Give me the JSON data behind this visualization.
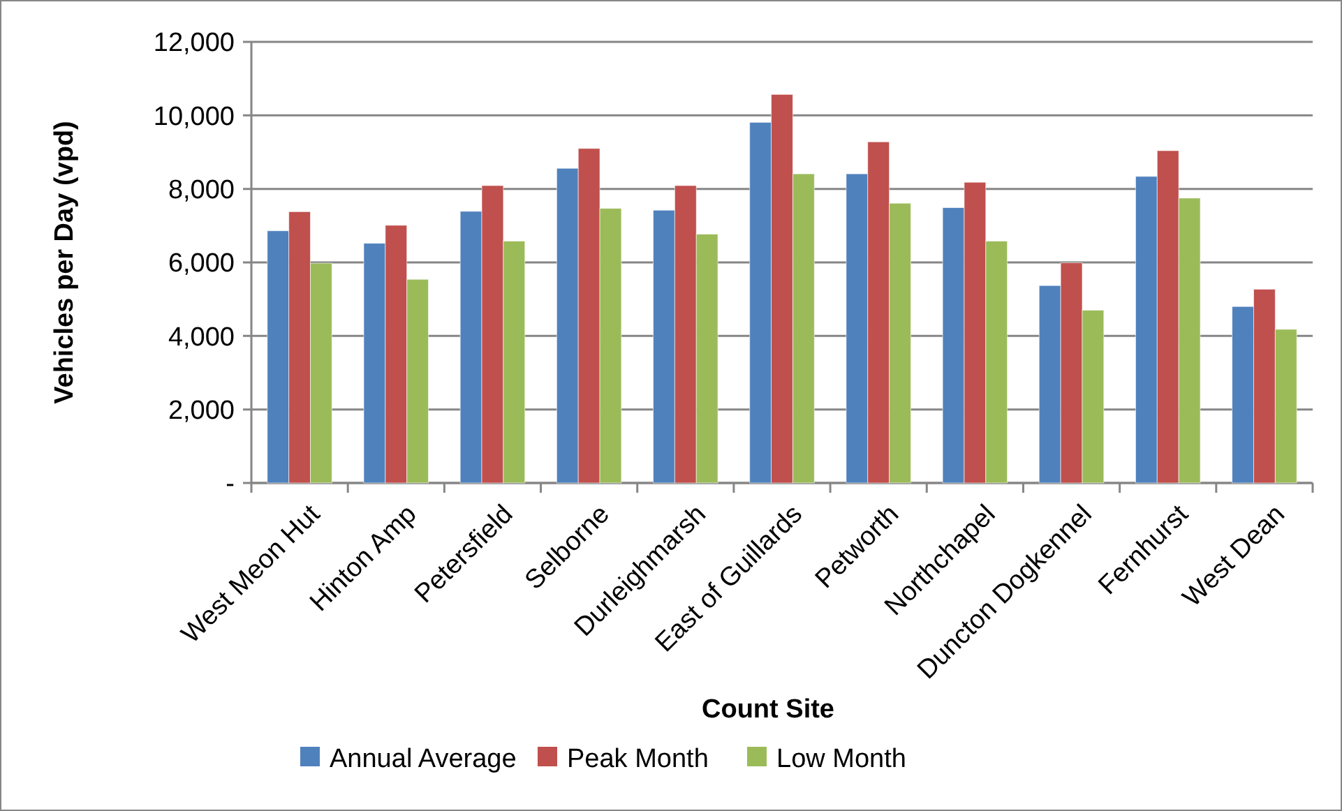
{
  "chart_data": {
    "type": "bar",
    "xlabel": "Count Site",
    "ylabel": "Vehicles per Day (vpd)",
    "categories": [
      "West Meon Hut",
      "Hinton Amp",
      "Petersfield",
      "Selborne",
      "Durleighmarsh",
      "East of Guillards",
      "Petworth",
      "Northchapel",
      "Duncton Dogkennel",
      "Fernhurst",
      "West Dean"
    ],
    "series": [
      {
        "name": "Annual Average",
        "color": "#4f81bd",
        "values": [
          6860,
          6520,
          7390,
          8560,
          7420,
          9810,
          8410,
          7490,
          5370,
          8340,
          4800
        ]
      },
      {
        "name": "Peak Month",
        "color": "#c0504d",
        "values": [
          7380,
          7010,
          8090,
          9100,
          8090,
          10570,
          9280,
          8180,
          5990,
          9040,
          5270
        ]
      },
      {
        "name": "Low Month",
        "color": "#9bbb59",
        "values": [
          5980,
          5540,
          6580,
          7470,
          6770,
          8410,
          7610,
          6580,
          4700,
          7750,
          4180
        ]
      }
    ],
    "ylim": [
      0,
      12000
    ],
    "yticks": [
      {
        "value": 0,
        "label": "-"
      },
      {
        "value": 2000,
        "label": "2,000"
      },
      {
        "value": 4000,
        "label": "4,000"
      },
      {
        "value": 6000,
        "label": "6,000"
      },
      {
        "value": 8000,
        "label": "8,000"
      },
      {
        "value": 10000,
        "label": "10,000"
      },
      {
        "value": 12000,
        "label": "12,000"
      }
    ],
    "grid": "y",
    "legend": "bottom"
  }
}
